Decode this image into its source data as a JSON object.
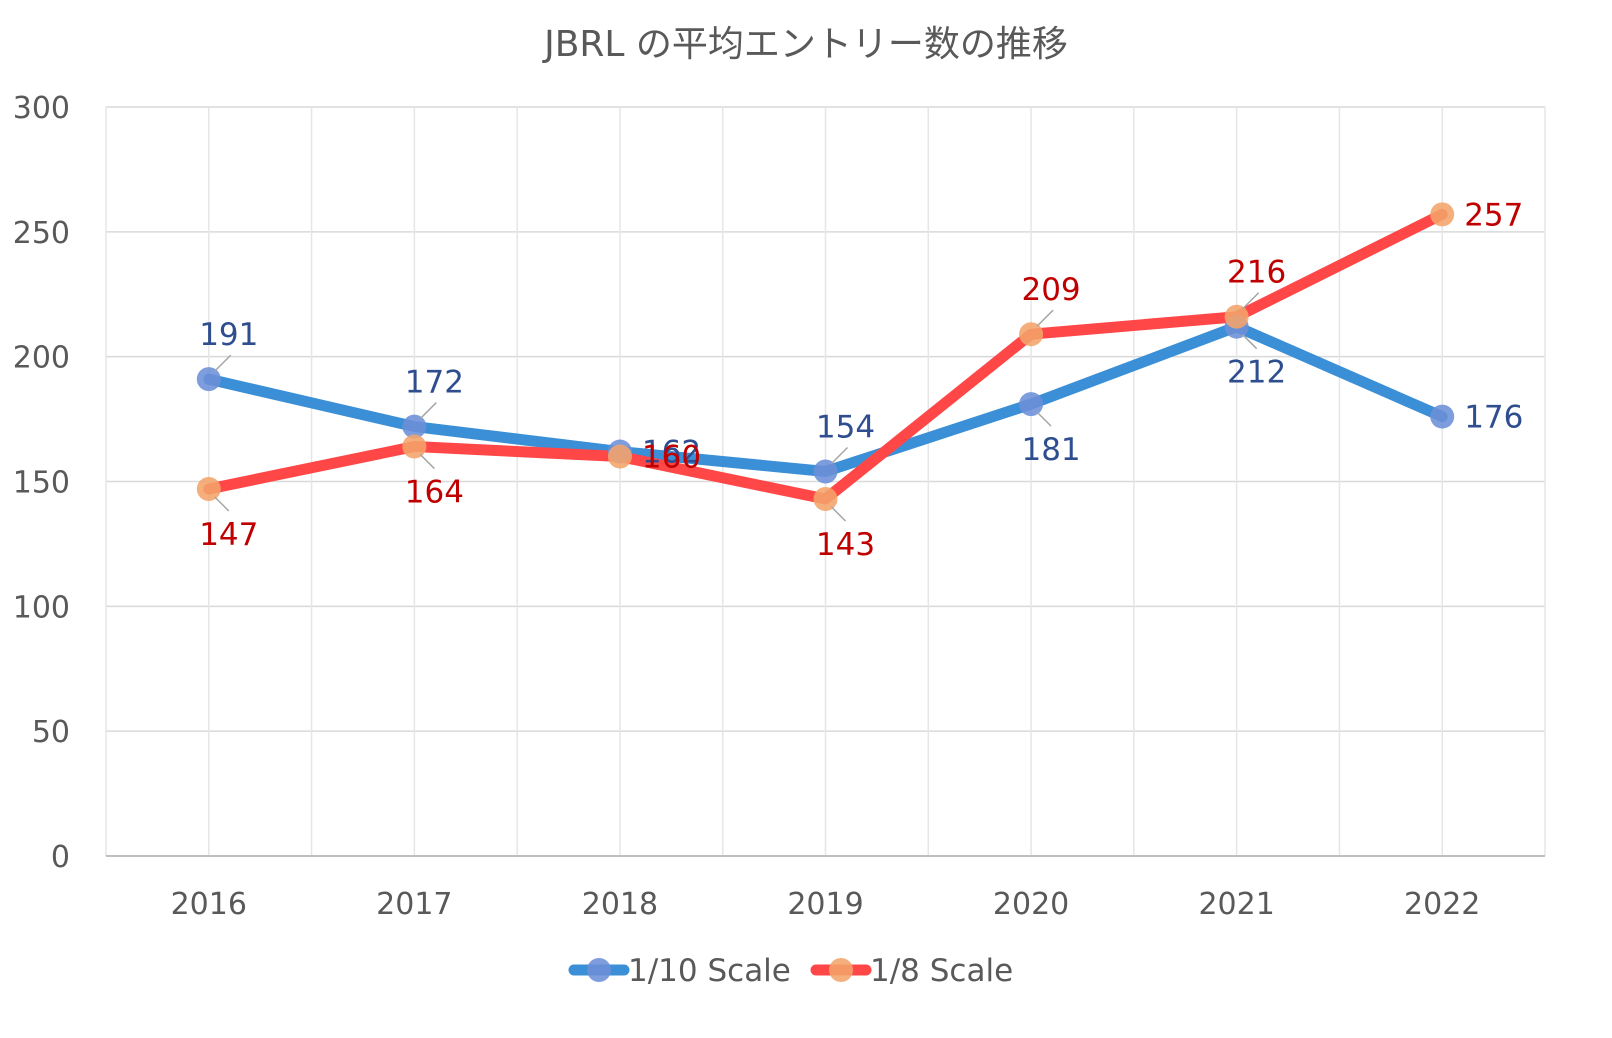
{
  "chart_data": {
    "type": "line",
    "title": "JBRL の平均エントリー数の推移",
    "xlabel": "",
    "ylabel": "",
    "categories": [
      "2016",
      "2017",
      "2018",
      "2019",
      "2020",
      "2021",
      "2022"
    ],
    "ylim": [
      0,
      300
    ],
    "yticks": [
      0,
      50,
      100,
      150,
      200,
      250,
      300
    ],
    "grid": true,
    "legend": "bottom",
    "series": [
      {
        "name": "1/10 Scale",
        "values": [
          191,
          172,
          162,
          154,
          181,
          212,
          176
        ],
        "line_color": "#3A8FD6",
        "marker_color": "#6C8FD8",
        "label_color": "#2F4E8F",
        "label_positions": [
          "above",
          "above",
          "right",
          "above",
          "below",
          "below",
          "right"
        ]
      },
      {
        "name": "1/8 Scale",
        "values": [
          147,
          164,
          160,
          143,
          209,
          216,
          257
        ],
        "line_color": "#FF4747",
        "marker_color": "#F4A46B",
        "label_color": "#C00000",
        "label_positions": [
          "below",
          "below",
          "right",
          "below",
          "above",
          "above",
          "right"
        ]
      }
    ]
  }
}
